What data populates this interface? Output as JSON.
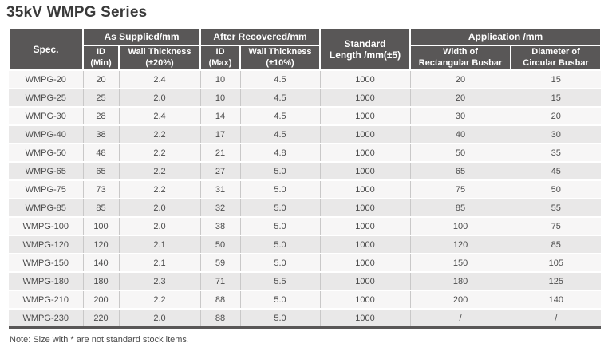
{
  "page": {
    "title": "35kV WMPG Series",
    "note": "Note: Size with * are not standard stock items."
  },
  "colors": {
    "header_bg": "#595757",
    "header_text": "#ffffff",
    "row_light": "#f7f6f6",
    "row_dark": "#e9e8e8",
    "cell_divider": "#c9c8c8",
    "title_text": "#3a3a3a",
    "body_text": "#4c4c4c",
    "table_bottom_border": "#595757"
  },
  "table": {
    "column_keys": [
      "spec",
      "id_min",
      "wall_20",
      "id_max",
      "wall_10",
      "std_length",
      "width_rect",
      "dia_circ"
    ],
    "header": {
      "spec": "Spec.",
      "as_supplied": "As Supplied/mm",
      "after_recovered": "After Recovered/mm",
      "standard_length": "Standard\nLength /mm(±5)",
      "application": "Application /mm",
      "id_min": "ID\n(Min)",
      "wall_20": "Wall Thickness\n(±20%)",
      "id_max": "ID\n(Max)",
      "wall_10": "Wall Thickness\n(±10%)",
      "width_rect": "Width of\nRectangular Busbar",
      "dia_circ": "Diameter of\nCircular Busbar"
    },
    "rows": [
      {
        "spec": "WMPG-20",
        "id_min": "20",
        "wall_20": "2.4",
        "id_max": "10",
        "wall_10": "4.5",
        "std_length": "1000",
        "width_rect": "20",
        "dia_circ": "15"
      },
      {
        "spec": "WMPG-25",
        "id_min": "25",
        "wall_20": "2.0",
        "id_max": "10",
        "wall_10": "4.5",
        "std_length": "1000",
        "width_rect": "20",
        "dia_circ": "15"
      },
      {
        "spec": "WMPG-30",
        "id_min": "28",
        "wall_20": "2.4",
        "id_max": "14",
        "wall_10": "4.5",
        "std_length": "1000",
        "width_rect": "30",
        "dia_circ": "20"
      },
      {
        "spec": "WMPG-40",
        "id_min": "38",
        "wall_20": "2.2",
        "id_max": "17",
        "wall_10": "4.5",
        "std_length": "1000",
        "width_rect": "40",
        "dia_circ": "30"
      },
      {
        "spec": "WMPG-50",
        "id_min": "48",
        "wall_20": "2.2",
        "id_max": "21",
        "wall_10": "4.8",
        "std_length": "1000",
        "width_rect": "50",
        "dia_circ": "35"
      },
      {
        "spec": "WMPG-65",
        "id_min": "65",
        "wall_20": "2.2",
        "id_max": "27",
        "wall_10": "5.0",
        "std_length": "1000",
        "width_rect": "65",
        "dia_circ": "45"
      },
      {
        "spec": "WMPG-75",
        "id_min": "73",
        "wall_20": "2.2",
        "id_max": "31",
        "wall_10": "5.0",
        "std_length": "1000",
        "width_rect": "75",
        "dia_circ": "50"
      },
      {
        "spec": "WMPG-85",
        "id_min": "85",
        "wall_20": "2.0",
        "id_max": "32",
        "wall_10": "5.0",
        "std_length": "1000",
        "width_rect": "85",
        "dia_circ": "55"
      },
      {
        "spec": "WMPG-100",
        "id_min": "100",
        "wall_20": "2.0",
        "id_max": "38",
        "wall_10": "5.0",
        "std_length": "1000",
        "width_rect": "100",
        "dia_circ": "75"
      },
      {
        "spec": "WMPG-120",
        "id_min": "120",
        "wall_20": "2.1",
        "id_max": "50",
        "wall_10": "5.0",
        "std_length": "1000",
        "width_rect": "120",
        "dia_circ": "85"
      },
      {
        "spec": "WMPG-150",
        "id_min": "140",
        "wall_20": "2.1",
        "id_max": "59",
        "wall_10": "5.0",
        "std_length": "1000",
        "width_rect": "150",
        "dia_circ": "105"
      },
      {
        "spec": "WMPG-180",
        "id_min": "180",
        "wall_20": "2.3",
        "id_max": "71",
        "wall_10": "5.5",
        "std_length": "1000",
        "width_rect": "180",
        "dia_circ": "125"
      },
      {
        "spec": "WMPG-210",
        "id_min": "200",
        "wall_20": "2.2",
        "id_max": "88",
        "wall_10": "5.0",
        "std_length": "1000",
        "width_rect": "200",
        "dia_circ": "140"
      },
      {
        "spec": "WMPG-230",
        "id_min": "220",
        "wall_20": "2.0",
        "id_max": "88",
        "wall_10": "5.0",
        "std_length": "1000",
        "width_rect": "/",
        "dia_circ": "/"
      }
    ]
  }
}
